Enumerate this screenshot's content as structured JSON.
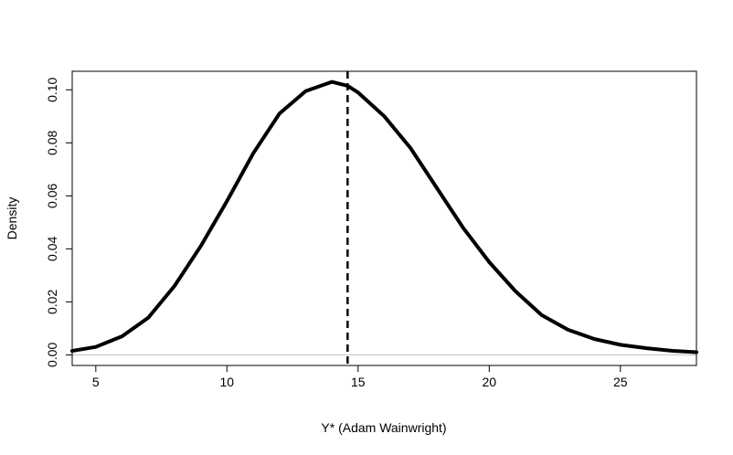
{
  "chart_data": {
    "type": "line",
    "title": "",
    "xlabel": "Y* (Adam Wainwright)",
    "ylabel": "Density",
    "xlim": [
      4.1,
      27.9
    ],
    "ylim": [
      -0.004,
      0.107
    ],
    "x_ticks": [
      5,
      10,
      15,
      20,
      25
    ],
    "y_ticks": [
      0.0,
      0.02,
      0.04,
      0.06,
      0.08,
      0.1
    ],
    "x_tick_labels": [
      "5",
      "10",
      "15",
      "20",
      "25"
    ],
    "y_tick_labels": [
      "0.00",
      "0.02",
      "0.04",
      "0.06",
      "0.08",
      "0.10"
    ],
    "grid": false,
    "legend": "none",
    "series": [
      {
        "line_color": "#000000",
        "x": [
          4.1,
          5,
          6,
          7,
          8,
          9,
          10,
          11,
          12,
          13,
          14,
          14.6,
          15,
          16,
          17,
          18,
          19,
          20,
          21,
          22,
          23,
          24,
          25,
          26,
          27,
          27.9
        ],
        "y": [
          0.0015,
          0.003,
          0.007,
          0.014,
          0.026,
          0.041,
          0.058,
          0.076,
          0.091,
          0.0995,
          0.103,
          0.1015,
          0.099,
          0.09,
          0.078,
          0.063,
          0.048,
          0.035,
          0.024,
          0.015,
          0.0095,
          0.006,
          0.0038,
          0.0025,
          0.0015,
          0.001
        ]
      }
    ],
    "reference_lines": {
      "vertical_dashed_x": 14.6,
      "horizontal_y": 0.0,
      "horizontal_color": "#bebebe"
    }
  }
}
